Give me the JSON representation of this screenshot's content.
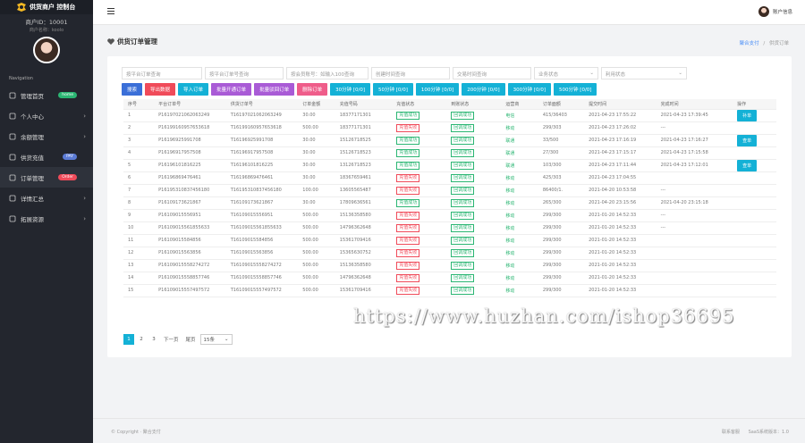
{
  "brand": {
    "title": "供货商户 控制台"
  },
  "merchant": {
    "id": "商户ID：10001",
    "sub": "商户名称：koolo"
  },
  "navigation_label": "Navigation",
  "nav": [
    {
      "label": "管理首页",
      "badge": "home",
      "badge_color": "#2bb673",
      "arrow": ""
    },
    {
      "label": "个人中心",
      "badge": "",
      "arrow": "›"
    },
    {
      "label": "余额管理",
      "badge": "",
      "arrow": "›"
    },
    {
      "label": "供货充值",
      "badge": "PAY",
      "badge_color": "#5b7bd5",
      "arrow": ""
    },
    {
      "label": "订单管理",
      "badge": "Order",
      "badge_color": "#f04b5a",
      "arrow": ""
    },
    {
      "label": "详情汇总",
      "badge": "",
      "arrow": "›"
    },
    {
      "label": "拓展资源",
      "badge": "",
      "arrow": "›"
    }
  ],
  "user": {
    "name": "账户信息"
  },
  "page": {
    "title": "供货订单管理",
    "crumb_home": "聚合支付",
    "crumb_sep": "/",
    "crumb_current": "供货订单"
  },
  "filters": [
    "按平台订单查询",
    "按平台订单号查询",
    "按会员账号：如输入100查询",
    "创建时间查询",
    "交易时间查询",
    "业务状态",
    "利用状态"
  ],
  "buttons": [
    {
      "label": "搜索",
      "color": "#3b6fd8"
    },
    {
      "label": "导出数据",
      "color": "#f04b5a"
    },
    {
      "label": "导入订单",
      "color": "#14b1d6"
    },
    {
      "label": "批量开通订单",
      "color": "#a95bd6"
    },
    {
      "label": "批量驳回订单",
      "color": "#a95bd6"
    },
    {
      "label": "删除订单",
      "color": "#ef5d8a"
    },
    {
      "label": "30分钟 [0/0]",
      "color": "#14b1d6"
    },
    {
      "label": "50分钟 [0/0]",
      "color": "#14b1d6"
    },
    {
      "label": "100分钟 [0/0]",
      "color": "#14b1d6"
    },
    {
      "label": "200分钟 [0/0]",
      "color": "#14b1d6"
    },
    {
      "label": "300分钟 [0/0]",
      "color": "#14b1d6"
    },
    {
      "label": "500分钟 [0/0]",
      "color": "#14b1d6"
    }
  ],
  "table": {
    "headers": [
      "序号",
      "平台订单号",
      "供货订单号",
      "订单金额",
      "充值号码",
      "充值状态",
      "到账状态",
      "运营商",
      "订单面额",
      "提交时间",
      "完成时间",
      "操作"
    ],
    "rows": [
      [
        "1",
        "P16197021062063249",
        "T16197021062063249",
        "30.00",
        "18377171301",
        "充值成功",
        "回调成功",
        "电信",
        "415/36403",
        "2021-04-23 17:55:22",
        "2021-04-23 17:39:45",
        "补单"
      ],
      [
        "2",
        "P16199160957653618",
        "T16199160957653618",
        "500.00",
        "18377171301",
        "充值失败",
        "回调成功",
        "移动",
        "299/303",
        "2021-04-23 17:26:02",
        "---",
        ""
      ],
      [
        "3",
        "P16196925991708",
        "T16196925991708",
        "30.00",
        "15126718525",
        "充值成功",
        "回调成功",
        "联通",
        "33/500",
        "2021-04-23 17:16:19",
        "2021-04-23 17:16:27",
        "查单"
      ],
      [
        "4",
        "P16196917957508",
        "T16196917957508",
        "30.00",
        "15126718523",
        "充值成功",
        "回调成功",
        "联通",
        "27/300",
        "2021-04-23 17:15:17",
        "2021-04-23 17:15:58",
        ""
      ],
      [
        "5",
        "P16196101816225",
        "T16196101816225",
        "30.00",
        "13126718523",
        "充值成功",
        "回调成功",
        "联通",
        "103/300",
        "2021-04-23 17:11:44",
        "2021-04-23 17:12:01",
        "查单"
      ],
      [
        "6",
        "P16196869476461",
        "T16196869476461",
        "30.00",
        "18367659461",
        "充值失败",
        "回调成功",
        "移动",
        "425/303",
        "2021-04-23 17:04:55",
        "",
        ""
      ],
      [
        "7",
        "P16195310837456180",
        "T16195310837456180",
        "100.00",
        "13605565487",
        "充值失败",
        "回调成功",
        "移动",
        "86400/1.",
        "2021-04-20 10:53:58",
        "---",
        ""
      ],
      [
        "8",
        "P16109173621867",
        "T16109173621867",
        "30.00",
        "17809636561",
        "充值成功",
        "回调成功",
        "移动",
        "265/300",
        "2021-04-20 23:15:56",
        "2021-04-20 23:15:18",
        ""
      ],
      [
        "9",
        "P16109015556951",
        "T16109015556951",
        "500.00",
        "15136358580",
        "充值失败",
        "回调成功",
        "移动",
        "299/300",
        "2021-01-20 14:52:33",
        "---",
        ""
      ],
      [
        "10",
        "P16109015561855633",
        "T16109015561855633",
        "500.00",
        "14796362648",
        "充值失败",
        "回调成功",
        "移动",
        "299/300",
        "2021-01-20 14:52:33",
        "---",
        ""
      ],
      [
        "11",
        "P16109015584856",
        "T16109015584856",
        "500.00",
        "15361709416",
        "充值失败",
        "回调成功",
        "移动",
        "299/300",
        "2021-01-20 14:52:33",
        "",
        ""
      ],
      [
        "12",
        "P16109015563856",
        "T16109015563856",
        "500.00",
        "15365630752",
        "充值失败",
        "回调成功",
        "移动",
        "299/300",
        "2021-01-20 14:52:33",
        "",
        ""
      ],
      [
        "13",
        "P16109015558274272",
        "T16109015558274272",
        "500.00",
        "15136358580",
        "充值失败",
        "回调成功",
        "移动",
        "299/300",
        "2021-01-20 14:52:33",
        "",
        ""
      ],
      [
        "14",
        "P16109015558857746",
        "T16109015558857746",
        "500.00",
        "14796362648",
        "充值失败",
        "回调成功",
        "移动",
        "299/300",
        "2021-01-20 14:52:33",
        "",
        ""
      ],
      [
        "15",
        "P16109015557497572",
        "T16109015557497572",
        "500.00",
        "15361709416",
        "充值失败",
        "回调成功",
        "移动",
        "299/300",
        "2021-01-20 14:52:33",
        "",
        ""
      ]
    ]
  },
  "pager": {
    "pages": [
      "1",
      "2",
      "3"
    ],
    "next": "下一页",
    "last": "尾页",
    "size": "15条"
  },
  "footer": {
    "left": "© Copyright · 聚合支付",
    "right_link": "联系客服",
    "right_ver": "SaaS系统版本：1.0"
  },
  "watermark": "https://www.huzhan.com/ishop36695"
}
